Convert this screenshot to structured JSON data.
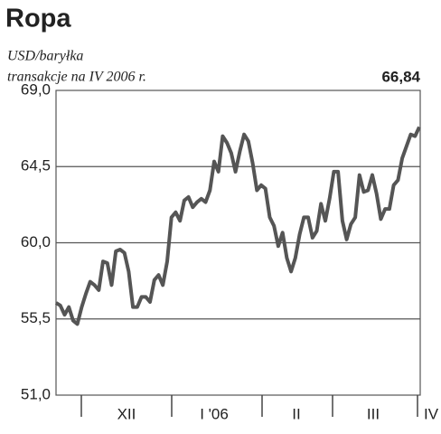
{
  "chart_data": {
    "type": "line",
    "title": "Ropa",
    "subtitle": "USD/baryłka",
    "note": "transakcje na IV 2006 r.",
    "annotation": {
      "value": 66.84,
      "label": "66,84"
    },
    "months": [
      "XII",
      "I '06",
      "II",
      "III",
      "IV"
    ],
    "series": [
      {
        "color": "#555555",
        "values": [
          56.45,
          56.3,
          55.75,
          56.2,
          55.4,
          55.2,
          56.2,
          57.0,
          57.7,
          57.5,
          57.2,
          58.9,
          58.8,
          57.5,
          59.5,
          59.6,
          59.4,
          58.3,
          56.2,
          56.2,
          56.8,
          56.8,
          56.5,
          57.8,
          58.1,
          57.5,
          58.9,
          61.5,
          61.8,
          61.3,
          62.5,
          62.7,
          62.1,
          62.4,
          62.6,
          62.4,
          63.1,
          64.8,
          64.2,
          66.3,
          65.9,
          65.3,
          64.2,
          65.4,
          66.4,
          66.0,
          64.7,
          63.1,
          63.4,
          63.2,
          61.5,
          61.0,
          59.8,
          60.6,
          59.1,
          58.3,
          59.1,
          60.5,
          61.5,
          61.5,
          60.3,
          60.7,
          62.3,
          61.3,
          62.6,
          64.2,
          64.2,
          61.3,
          60.2,
          61.1,
          61.5,
          64.0,
          63.0,
          63.1,
          64.0,
          62.9,
          61.4,
          62.0,
          62.0,
          63.4,
          63.7,
          65.0,
          65.7,
          66.4,
          66.3,
          66.84
        ]
      }
    ],
    "ylim": [
      51,
      69
    ],
    "yticks": [
      {
        "value": 51,
        "label": "51,0"
      },
      {
        "value": 55.5,
        "label": "55,5"
      },
      {
        "value": 60,
        "label": "60,0"
      },
      {
        "value": 64.5,
        "label": "64,5"
      },
      {
        "value": 69,
        "label": "69,0"
      }
    ],
    "grid": true
  }
}
